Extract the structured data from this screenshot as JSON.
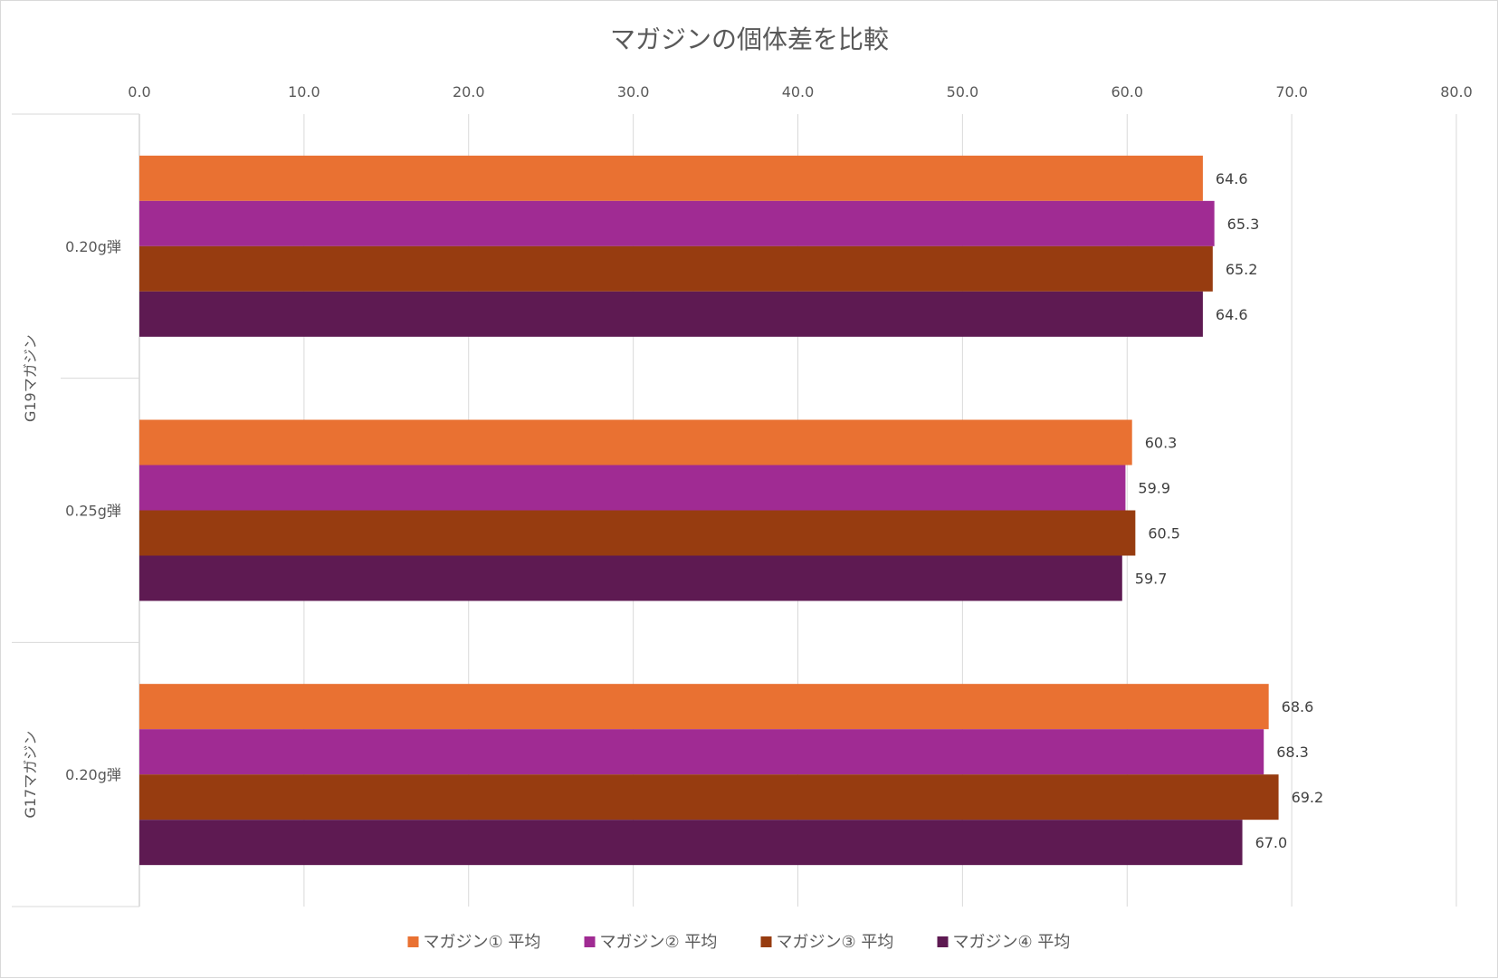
{
  "chart_data": {
    "type": "bar",
    "orientation": "horizontal",
    "title": "マガジンの個体差を比較",
    "x_axis": {
      "min": 0,
      "max": 80,
      "step": 10,
      "ticks": [
        "0.0",
        "10.0",
        "20.0",
        "30.0",
        "40.0",
        "50.0",
        "60.0",
        "70.0",
        "80.0"
      ],
      "position": "top",
      "grid": true
    },
    "groups": [
      {
        "name": "G19マガジン",
        "categories": [
          "0.20g弾",
          "0.25g弾"
        ]
      },
      {
        "name": "G17マガジン",
        "categories": [
          "0.20g弾"
        ]
      }
    ],
    "categories": [
      "0.20g弾",
      "0.25g弾",
      "0.20g弾"
    ],
    "series": [
      {
        "name": "マガジン① 平均",
        "color": "#E97132",
        "values": [
          64.6,
          60.3,
          68.6
        ],
        "labels": [
          "64.6",
          "60.3",
          "68.6"
        ]
      },
      {
        "name": "マガジン② 平均",
        "color": "#A02B93",
        "values": [
          65.3,
          59.9,
          68.3
        ],
        "labels": [
          "65.3",
          "59.9",
          "68.3"
        ]
      },
      {
        "name": "マガジン③ 平均",
        "color": "#973C10",
        "values": [
          65.2,
          60.5,
          69.2
        ],
        "labels": [
          "65.2",
          "60.5",
          "69.2"
        ]
      },
      {
        "name": "マガジン④ 平均",
        "color": "#5E1A52",
        "values": [
          64.6,
          59.7,
          67.0
        ],
        "labels": [
          "64.6",
          "59.7",
          "67.0"
        ]
      }
    ],
    "legend_position": "bottom",
    "data_labels": true
  }
}
